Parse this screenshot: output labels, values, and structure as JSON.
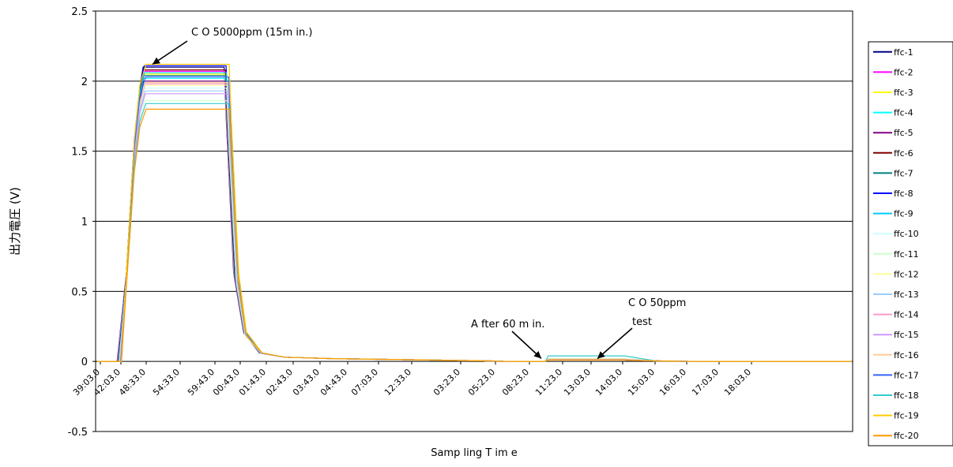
{
  "chart_data": {
    "type": "line",
    "title": "",
    "xlabel": "Samp ling T im e",
    "ylabel": "出力電圧 (V)",
    "ylim": [
      -0.5,
      2.5
    ],
    "yticks": [
      -0.5,
      0,
      0.5,
      1,
      1.5,
      2,
      2.5
    ],
    "ytick_labels": [
      "-0.5",
      "0",
      "0.5",
      "1",
      "1.5",
      "2",
      "2.5"
    ],
    "grid": "horizontal",
    "legend_position": "right",
    "x_categories": [
      "39:03.0",
      "42:03.0",
      "48:33.0",
      "54:33.0",
      "59:43.0",
      "00:43.0",
      "01:43.0",
      "02:43.0",
      "03:43.0",
      "04:43.0",
      "07:03.0",
      "12:33.0",
      "03:23.0",
      "05:23.0",
      "08:23.0",
      "11:23.0",
      "13:03.0",
      "14:03.0",
      "15:03.0",
      "16:03.0",
      "17:03.0",
      "18:03.0"
    ],
    "annotations": [
      {
        "text": "C O 5000ppm (15m in.)",
        "x": "48:33.0",
        "y": 2.12
      },
      {
        "text": "A fter 60 m in.",
        "x": "05:23.0",
        "y": 0.01
      },
      {
        "text": "C O 50ppm",
        "x": "08:23.0",
        "y": 0.02
      },
      {
        "text": "test",
        "x": "08:23.0",
        "y": 0.02
      }
    ],
    "series": [
      {
        "name": "ffc-1",
        "color": "#000080",
        "plateau": 2.1,
        "tail": 0.01
      },
      {
        "name": "ffc-2",
        "color": "#ff00ff",
        "plateau": 2.07,
        "tail": 0.012
      },
      {
        "name": "ffc-3",
        "color": "#ffff00",
        "plateau": 2.05,
        "tail": 0.015
      },
      {
        "name": "ffc-4",
        "color": "#00ffff",
        "plateau": 2.02,
        "tail": 0.018
      },
      {
        "name": "ffc-5",
        "color": "#800080",
        "plateau": 2.0,
        "tail": 0.01
      },
      {
        "name": "ffc-6",
        "color": "#800000",
        "plateau": 2.08,
        "tail": 0.01
      },
      {
        "name": "ffc-7",
        "color": "#008080",
        "plateau": 2.04,
        "tail": 0.012
      },
      {
        "name": "ffc-8",
        "color": "#0000ff",
        "plateau": 2.11,
        "tail": 0.01
      },
      {
        "name": "ffc-9",
        "color": "#00ccff",
        "plateau": 2.06,
        "tail": 0.015
      },
      {
        "name": "ffc-10",
        "color": "#ccffff",
        "plateau": 1.95,
        "tail": 0.02
      },
      {
        "name": "ffc-11",
        "color": "#ccffcc",
        "plateau": 1.86,
        "tail": 0.02
      },
      {
        "name": "ffc-12",
        "color": "#ffff99",
        "plateau": 1.97,
        "tail": 0.018
      },
      {
        "name": "ffc-13",
        "color": "#99ccff",
        "plateau": 1.93,
        "tail": 0.015
      },
      {
        "name": "ffc-14",
        "color": "#ff99cc",
        "plateau": 1.98,
        "tail": 0.012
      },
      {
        "name": "ffc-15",
        "color": "#cc99ff",
        "plateau": 1.91,
        "tail": 0.015
      },
      {
        "name": "ffc-16",
        "color": "#ffcc99",
        "plateau": 1.99,
        "tail": 0.012
      },
      {
        "name": "ffc-17",
        "color": "#3366ff",
        "plateau": 2.03,
        "tail": 0.01
      },
      {
        "name": "ffc-18",
        "color": "#33cccc",
        "plateau": 1.84,
        "tail": 0.04
      },
      {
        "name": "ffc-19",
        "color": "#ffcc00",
        "plateau": 2.12,
        "tail": 0.01
      },
      {
        "name": "ffc-20",
        "color": "#ff9900",
        "plateau": 1.8,
        "tail": 0.01
      }
    ]
  }
}
